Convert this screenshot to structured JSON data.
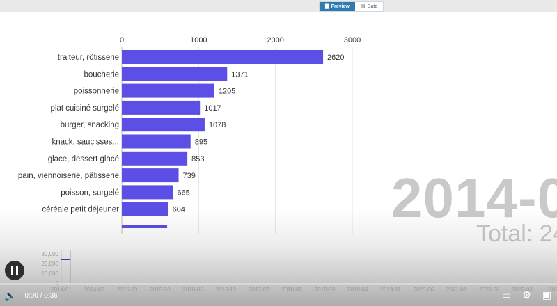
{
  "toolbar": {
    "preview_label": "Preview",
    "data_label": "Data",
    "preview_icon": "chart-icon",
    "data_icon": "table-icon"
  },
  "chart_data": {
    "type": "bar",
    "categories": [
      "traiteur, rôtisserie",
      "boucherie",
      "poissonnerie",
      "plat cuisiné surgelé",
      "burger, snacking",
      "knack, saucisses...",
      "glace, dessert glacé",
      "pain, viennoiserie, pâtisserie",
      "poisson, surgelé",
      "céréale petit déjeuner"
    ],
    "values": [
      2620,
      1371,
      1205,
      1017,
      1078,
      895,
      853,
      739,
      665,
      604
    ],
    "partial_bar_value": 590,
    "xticks": [
      0,
      1000,
      2000,
      3000
    ],
    "xlim": [
      0,
      3000
    ],
    "bar_color": "#5b4fe6",
    "grid": true
  },
  "overlay": {
    "date_label": "2014-0",
    "total_label": "Total: 24"
  },
  "timeline": {
    "y_ticks": [
      "30,000",
      "20,000",
      "10,000",
      "0"
    ],
    "x_labels": [
      "2014-01",
      "2014-08",
      "2015-03",
      "2015-10",
      "2016-05",
      "2016-12",
      "2017-07",
      "2018-02",
      "2018-09",
      "2019-04",
      "2019-11",
      "2020-06",
      "2021-01",
      "2021-08",
      "2022-03",
      "2022"
    ],
    "marker_color": "#3b3bb0"
  },
  "player": {
    "time": "0:00 / 0:36",
    "volume_icon": "volume-icon",
    "pause_icon": "pause-icon",
    "subtitles_icon": "subtitles-icon",
    "settings_icon": "gear-icon",
    "pip_icon": "pip-icon"
  }
}
